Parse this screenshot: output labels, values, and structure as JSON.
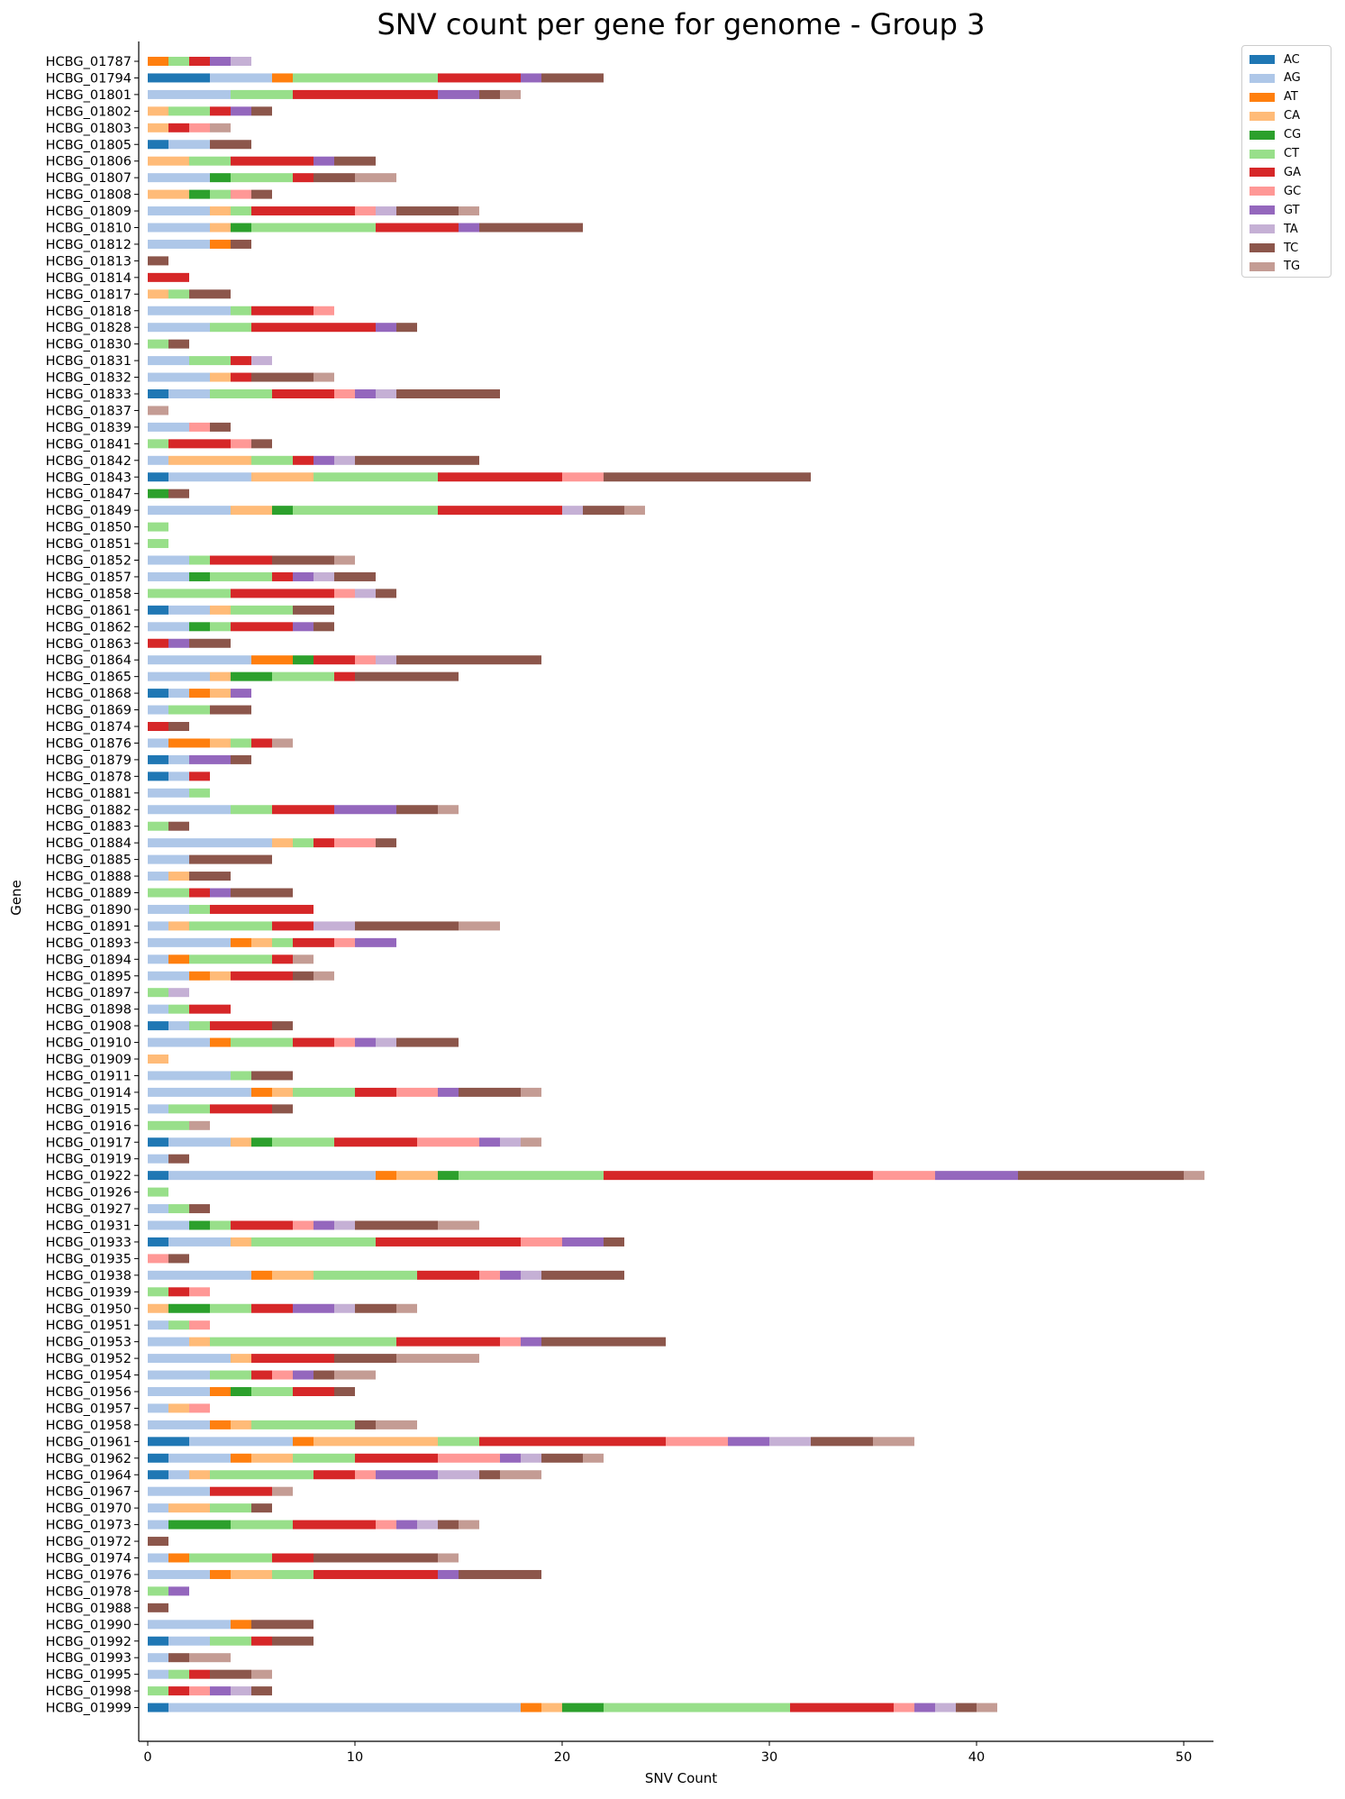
{
  "chart_data": {
    "type": "bar",
    "orientation": "horizontal",
    "stacked": true,
    "title": "SNV count per gene for genome - Group 3",
    "xlabel": "SNV Count",
    "ylabel": "Gene",
    "xlim": [
      -0.5,
      51.5
    ],
    "xticks": [
      0,
      10,
      20,
      30,
      40,
      50
    ],
    "grid": false,
    "legend_position": "outside top-right",
    "series_names": [
      "AC",
      "AG",
      "AT",
      "CA",
      "CG",
      "CT",
      "GA",
      "GC",
      "GT",
      "TA",
      "TC",
      "TG"
    ],
    "colors": {
      "AC": "#1f77b4",
      "AG": "#aec7e8",
      "AT": "#ff7f0e",
      "CA": "#ffbb78",
      "CG": "#2ca02c",
      "CT": "#98df8a",
      "GA": "#d62728",
      "GC": "#ff9896",
      "GT": "#9467bd",
      "TA": "#c5b0d5",
      "TC": "#8c564b",
      "TG": "#c49c94"
    },
    "genes": [
      {
        "gene": "HCBG_01787",
        "counts": {
          "AT": 1,
          "CT": 1,
          "GA": 1,
          "GT": 1,
          "TA": 1
        }
      },
      {
        "gene": "HCBG_01794",
        "counts": {
          "AC": 3,
          "AG": 3,
          "AT": 1,
          "CT": 7,
          "GA": 4,
          "GT": 1,
          "TC": 3
        }
      },
      {
        "gene": "HCBG_01801",
        "counts": {
          "AG": 4,
          "CT": 3,
          "GA": 7,
          "GT": 2,
          "TC": 1,
          "TG": 1
        }
      },
      {
        "gene": "HCBG_01802",
        "counts": {
          "CA": 1,
          "CT": 2,
          "GA": 1,
          "GT": 1,
          "TC": 1
        }
      },
      {
        "gene": "HCBG_01803",
        "counts": {
          "CA": 1,
          "GA": 1,
          "GC": 1,
          "TG": 1
        }
      },
      {
        "gene": "HCBG_01805",
        "counts": {
          "AC": 1,
          "AG": 2,
          "TC": 2
        }
      },
      {
        "gene": "HCBG_01806",
        "counts": {
          "CA": 2,
          "CT": 2,
          "GA": 4,
          "GT": 1,
          "TC": 2
        }
      },
      {
        "gene": "HCBG_01807",
        "counts": {
          "AG": 3,
          "CG": 1,
          "CT": 3,
          "GA": 1,
          "TC": 2,
          "TG": 2
        }
      },
      {
        "gene": "HCBG_01808",
        "counts": {
          "CA": 2,
          "CG": 1,
          "CT": 1,
          "GC": 1,
          "TC": 1
        }
      },
      {
        "gene": "HCBG_01809",
        "counts": {
          "AG": 3,
          "CA": 1,
          "CT": 1,
          "GA": 5,
          "GC": 1,
          "TA": 1,
          "TC": 3,
          "TG": 1
        }
      },
      {
        "gene": "HCBG_01810",
        "counts": {
          "AG": 3,
          "CA": 1,
          "CG": 1,
          "CT": 6,
          "GA": 4,
          "GT": 1,
          "TC": 5
        }
      },
      {
        "gene": "HCBG_01812",
        "counts": {
          "AG": 3,
          "AT": 1,
          "TC": 1
        }
      },
      {
        "gene": "HCBG_01813",
        "counts": {
          "TC": 1
        }
      },
      {
        "gene": "HCBG_01814",
        "counts": {
          "GA": 2
        }
      },
      {
        "gene": "HCBG_01817",
        "counts": {
          "CA": 1,
          "CT": 1,
          "TC": 2
        }
      },
      {
        "gene": "HCBG_01818",
        "counts": {
          "AG": 4,
          "CT": 1,
          "GA": 3,
          "GC": 1
        }
      },
      {
        "gene": "HCBG_01828",
        "counts": {
          "AG": 3,
          "CT": 2,
          "GA": 6,
          "GT": 1,
          "TC": 1
        }
      },
      {
        "gene": "HCBG_01830",
        "counts": {
          "CT": 1,
          "TC": 1
        }
      },
      {
        "gene": "HCBG_01831",
        "counts": {
          "AG": 2,
          "CT": 2,
          "GA": 1,
          "TA": 1
        }
      },
      {
        "gene": "HCBG_01832",
        "counts": {
          "AG": 3,
          "CA": 1,
          "GA": 1,
          "TC": 3,
          "TG": 1
        }
      },
      {
        "gene": "HCBG_01833",
        "counts": {
          "AC": 1,
          "AG": 2,
          "CT": 3,
          "GA": 3,
          "GC": 1,
          "GT": 1,
          "TA": 1,
          "TC": 5
        }
      },
      {
        "gene": "HCBG_01837",
        "counts": {
          "TG": 1
        }
      },
      {
        "gene": "HCBG_01839",
        "counts": {
          "AG": 2,
          "GC": 1,
          "TC": 1
        }
      },
      {
        "gene": "HCBG_01841",
        "counts": {
          "CT": 1,
          "GA": 3,
          "GC": 1,
          "TC": 1
        }
      },
      {
        "gene": "HCBG_01842",
        "counts": {
          "AG": 1,
          "CA": 4,
          "CT": 2,
          "GA": 1,
          "GT": 1,
          "TA": 1,
          "TC": 6
        }
      },
      {
        "gene": "HCBG_01843",
        "counts": {
          "AC": 1,
          "AG": 4,
          "CA": 3,
          "CT": 6,
          "GA": 6,
          "GC": 2,
          "TC": 10
        }
      },
      {
        "gene": "HCBG_01847",
        "counts": {
          "CG": 1,
          "TC": 1
        }
      },
      {
        "gene": "HCBG_01849",
        "counts": {
          "AG": 4,
          "CA": 2,
          "CG": 1,
          "CT": 7,
          "GA": 6,
          "TA": 1,
          "TC": 2,
          "TG": 1
        }
      },
      {
        "gene": "HCBG_01850",
        "counts": {
          "CT": 1
        }
      },
      {
        "gene": "HCBG_01851",
        "counts": {
          "CT": 1
        }
      },
      {
        "gene": "HCBG_01852",
        "counts": {
          "AG": 2,
          "CT": 1,
          "GA": 3,
          "TC": 3,
          "TG": 1
        }
      },
      {
        "gene": "HCBG_01857",
        "counts": {
          "AG": 2,
          "CG": 1,
          "CT": 3,
          "GA": 1,
          "GT": 1,
          "TA": 1,
          "TC": 2
        }
      },
      {
        "gene": "HCBG_01858",
        "counts": {
          "CT": 4,
          "GA": 5,
          "GC": 1,
          "TA": 1,
          "TC": 1
        }
      },
      {
        "gene": "HCBG_01861",
        "counts": {
          "AC": 1,
          "AG": 2,
          "CA": 1,
          "CT": 3,
          "TC": 2
        }
      },
      {
        "gene": "HCBG_01862",
        "counts": {
          "AG": 2,
          "CG": 1,
          "CT": 1,
          "GA": 3,
          "GT": 1,
          "TC": 1
        }
      },
      {
        "gene": "HCBG_01863",
        "counts": {
          "GA": 1,
          "GT": 1,
          "TC": 2
        }
      },
      {
        "gene": "HCBG_01864",
        "counts": {
          "AG": 5,
          "AT": 2,
          "CG": 1,
          "GA": 2,
          "GC": 1,
          "TA": 1,
          "TC": 7
        }
      },
      {
        "gene": "HCBG_01865",
        "counts": {
          "AG": 3,
          "CA": 1,
          "CG": 2,
          "CT": 3,
          "GA": 1,
          "TC": 5
        }
      },
      {
        "gene": "HCBG_01868",
        "counts": {
          "AC": 1,
          "AG": 1,
          "AT": 1,
          "CA": 1,
          "GT": 1
        }
      },
      {
        "gene": "HCBG_01869",
        "counts": {
          "AG": 1,
          "CT": 2,
          "TC": 2
        }
      },
      {
        "gene": "HCBG_01874",
        "counts": {
          "GA": 1,
          "TC": 1
        }
      },
      {
        "gene": "HCBG_01876",
        "counts": {
          "AG": 1,
          "AT": 2,
          "CA": 1,
          "CT": 1,
          "GA": 1,
          "TG": 1
        }
      },
      {
        "gene": "HCBG_01879",
        "counts": {
          "AC": 1,
          "AG": 1,
          "GT": 2,
          "TC": 1
        }
      },
      {
        "gene": "HCBG_01878",
        "counts": {
          "AC": 1,
          "AG": 1,
          "GA": 1
        }
      },
      {
        "gene": "HCBG_01881",
        "counts": {
          "AG": 2,
          "CT": 1
        }
      },
      {
        "gene": "HCBG_01882",
        "counts": {
          "AG": 4,
          "CT": 2,
          "GA": 3,
          "GT": 3,
          "TC": 2,
          "TG": 1
        }
      },
      {
        "gene": "HCBG_01883",
        "counts": {
          "CT": 1,
          "TC": 1
        }
      },
      {
        "gene": "HCBG_01884",
        "counts": {
          "AG": 6,
          "CA": 1,
          "CT": 1,
          "GA": 1,
          "GC": 2,
          "TC": 1
        }
      },
      {
        "gene": "HCBG_01885",
        "counts": {
          "AG": 2,
          "TC": 4
        }
      },
      {
        "gene": "HCBG_01888",
        "counts": {
          "AG": 1,
          "CA": 1,
          "TC": 2
        }
      },
      {
        "gene": "HCBG_01889",
        "counts": {
          "CT": 2,
          "GA": 1,
          "GT": 1,
          "TC": 3
        }
      },
      {
        "gene": "HCBG_01890",
        "counts": {
          "AG": 2,
          "CT": 1,
          "GA": 5
        }
      },
      {
        "gene": "HCBG_01891",
        "counts": {
          "AG": 1,
          "CA": 1,
          "CT": 4,
          "GA": 2,
          "TA": 2,
          "TC": 5,
          "TG": 2
        }
      },
      {
        "gene": "HCBG_01893",
        "counts": {
          "AG": 4,
          "AT": 1,
          "CA": 1,
          "CT": 1,
          "GA": 2,
          "GC": 1,
          "GT": 2
        }
      },
      {
        "gene": "HCBG_01894",
        "counts": {
          "AG": 1,
          "AT": 1,
          "CT": 4,
          "GA": 1,
          "TG": 1
        }
      },
      {
        "gene": "HCBG_01895",
        "counts": {
          "AG": 2,
          "AT": 1,
          "CA": 1,
          "GA": 3,
          "TC": 1,
          "TG": 1
        }
      },
      {
        "gene": "HCBG_01897",
        "counts": {
          "CT": 1,
          "TA": 1
        }
      },
      {
        "gene": "HCBG_01898",
        "counts": {
          "AG": 1,
          "CT": 1,
          "GA": 2
        }
      },
      {
        "gene": "HCBG_01908",
        "counts": {
          "AC": 1,
          "AG": 1,
          "CT": 1,
          "GA": 3,
          "TC": 1
        }
      },
      {
        "gene": "HCBG_01910",
        "counts": {
          "AG": 3,
          "AT": 1,
          "CT": 3,
          "GA": 2,
          "GC": 1,
          "GT": 1,
          "TA": 1,
          "TC": 3
        }
      },
      {
        "gene": "HCBG_01909",
        "counts": {
          "CA": 1
        }
      },
      {
        "gene": "HCBG_01911",
        "counts": {
          "AG": 4,
          "CT": 1,
          "TC": 2
        }
      },
      {
        "gene": "HCBG_01914",
        "counts": {
          "AG": 5,
          "AT": 1,
          "CA": 1,
          "CT": 3,
          "GA": 2,
          "GC": 2,
          "GT": 1,
          "TC": 3,
          "TG": 1
        }
      },
      {
        "gene": "HCBG_01915",
        "counts": {
          "AG": 1,
          "CT": 2,
          "GA": 3,
          "TC": 1
        }
      },
      {
        "gene": "HCBG_01916",
        "counts": {
          "CT": 2,
          "TG": 1
        }
      },
      {
        "gene": "HCBG_01917",
        "counts": {
          "AC": 1,
          "AG": 3,
          "CA": 1,
          "CG": 1,
          "CT": 3,
          "GA": 4,
          "GC": 3,
          "GT": 1,
          "TA": 1,
          "TG": 1
        }
      },
      {
        "gene": "HCBG_01919",
        "counts": {
          "AG": 1,
          "TC": 1
        }
      },
      {
        "gene": "HCBG_01922",
        "counts": {
          "AC": 1,
          "AG": 10,
          "AT": 1,
          "CA": 2,
          "CG": 1,
          "CT": 7,
          "GA": 13,
          "GC": 3,
          "GT": 4,
          "TC": 8,
          "TG": 1
        }
      },
      {
        "gene": "HCBG_01926",
        "counts": {
          "CT": 1
        }
      },
      {
        "gene": "HCBG_01927",
        "counts": {
          "AG": 1,
          "CT": 1,
          "TC": 1
        }
      },
      {
        "gene": "HCBG_01931",
        "counts": {
          "AG": 2,
          "CG": 1,
          "CT": 1,
          "GA": 3,
          "GC": 1,
          "GT": 1,
          "TA": 1,
          "TC": 4,
          "TG": 2
        }
      },
      {
        "gene": "HCBG_01933",
        "counts": {
          "AC": 1,
          "AG": 3,
          "CA": 1,
          "CT": 6,
          "GA": 7,
          "GC": 2,
          "GT": 2,
          "TC": 1
        }
      },
      {
        "gene": "HCBG_01935",
        "counts": {
          "GC": 1,
          "TC": 1
        }
      },
      {
        "gene": "HCBG_01938",
        "counts": {
          "AG": 5,
          "AT": 1,
          "CA": 2,
          "CT": 5,
          "GA": 3,
          "GC": 1,
          "GT": 1,
          "TA": 1,
          "TC": 4
        }
      },
      {
        "gene": "HCBG_01939",
        "counts": {
          "CT": 1,
          "GA": 1,
          "GC": 1
        }
      },
      {
        "gene": "HCBG_01950",
        "counts": {
          "CA": 1,
          "CG": 2,
          "CT": 2,
          "GA": 2,
          "GT": 2,
          "TA": 1,
          "TC": 2,
          "TG": 1
        }
      },
      {
        "gene": "HCBG_01951",
        "counts": {
          "AG": 1,
          "CT": 1,
          "GC": 1
        }
      },
      {
        "gene": "HCBG_01953",
        "counts": {
          "AG": 2,
          "CA": 1,
          "CT": 9,
          "GA": 5,
          "GC": 1,
          "GT": 1,
          "TC": 6
        }
      },
      {
        "gene": "HCBG_01952",
        "counts": {
          "AG": 4,
          "CA": 1,
          "GA": 4,
          "TC": 3,
          "TG": 4
        }
      },
      {
        "gene": "HCBG_01954",
        "counts": {
          "AG": 3,
          "CT": 2,
          "GA": 1,
          "GC": 1,
          "GT": 1,
          "TC": 1,
          "TG": 2
        }
      },
      {
        "gene": "HCBG_01956",
        "counts": {
          "AG": 3,
          "AT": 1,
          "CG": 1,
          "CT": 2,
          "GA": 2,
          "TC": 1
        }
      },
      {
        "gene": "HCBG_01957",
        "counts": {
          "AG": 1,
          "CA": 1,
          "GC": 1
        }
      },
      {
        "gene": "HCBG_01958",
        "counts": {
          "AG": 3,
          "AT": 1,
          "CA": 1,
          "CT": 5,
          "TC": 1,
          "TG": 2
        }
      },
      {
        "gene": "HCBG_01961",
        "counts": {
          "AC": 2,
          "AG": 5,
          "AT": 1,
          "CA": 6,
          "CT": 2,
          "GA": 9,
          "GC": 3,
          "GT": 2,
          "TA": 2,
          "TC": 3,
          "TG": 2
        }
      },
      {
        "gene": "HCBG_01962",
        "counts": {
          "AC": 1,
          "AG": 3,
          "AT": 1,
          "CA": 2,
          "CT": 3,
          "GA": 4,
          "GC": 3,
          "GT": 1,
          "TA": 1,
          "TC": 2,
          "TG": 1
        }
      },
      {
        "gene": "HCBG_01964",
        "counts": {
          "AC": 1,
          "AG": 1,
          "CA": 1,
          "CT": 5,
          "GA": 2,
          "GC": 1,
          "GT": 3,
          "TA": 2,
          "TC": 1,
          "TG": 2
        }
      },
      {
        "gene": "HCBG_01967",
        "counts": {
          "AG": 3,
          "GA": 3,
          "TG": 1
        }
      },
      {
        "gene": "HCBG_01970",
        "counts": {
          "AG": 1,
          "CA": 2,
          "CT": 2,
          "TC": 1
        }
      },
      {
        "gene": "HCBG_01973",
        "counts": {
          "AG": 1,
          "CG": 3,
          "CT": 3,
          "GA": 4,
          "GC": 1,
          "GT": 1,
          "TA": 1,
          "TC": 1,
          "TG": 1
        }
      },
      {
        "gene": "HCBG_01972",
        "counts": {
          "TC": 1
        }
      },
      {
        "gene": "HCBG_01974",
        "counts": {
          "AG": 1,
          "AT": 1,
          "CT": 4,
          "GA": 2,
          "TC": 6,
          "TG": 1
        }
      },
      {
        "gene": "HCBG_01976",
        "counts": {
          "AG": 3,
          "AT": 1,
          "CA": 2,
          "CT": 2,
          "GA": 6,
          "GT": 1,
          "TC": 4
        }
      },
      {
        "gene": "HCBG_01978",
        "counts": {
          "CT": 1,
          "GT": 1
        }
      },
      {
        "gene": "HCBG_01988",
        "counts": {
          "TC": 1
        }
      },
      {
        "gene": "HCBG_01990",
        "counts": {
          "AG": 4,
          "AT": 1,
          "TC": 3
        }
      },
      {
        "gene": "HCBG_01992",
        "counts": {
          "AC": 1,
          "AG": 2,
          "CT": 2,
          "GA": 1,
          "TC": 2
        }
      },
      {
        "gene": "HCBG_01993",
        "counts": {
          "AG": 1,
          "TC": 1,
          "TG": 2
        }
      },
      {
        "gene": "HCBG_01995",
        "counts": {
          "AG": 1,
          "CT": 1,
          "GA": 1,
          "TC": 2,
          "TG": 1
        }
      },
      {
        "gene": "HCBG_01998",
        "counts": {
          "CT": 1,
          "GA": 1,
          "GC": 1,
          "GT": 1,
          "TA": 1,
          "TC": 1
        }
      },
      {
        "gene": "HCBG_01999",
        "counts": {
          "AC": 1,
          "AG": 17,
          "AT": 1,
          "CA": 1,
          "CG": 2,
          "CT": 9,
          "GA": 5,
          "GC": 1,
          "GT": 1,
          "TA": 1,
          "TC": 1,
          "TG": 1
        }
      }
    ]
  }
}
